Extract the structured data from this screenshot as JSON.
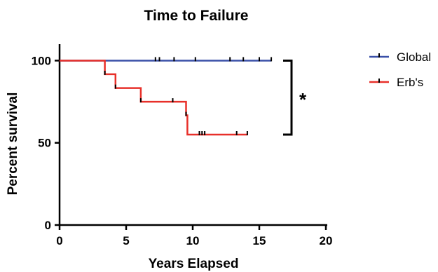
{
  "chart_data": {
    "type": "line",
    "title": "Time to Failure",
    "xlabel": "Years Elapsed",
    "ylabel": "Percent survival",
    "xlim": [
      0,
      20
    ],
    "ylim": [
      0,
      110
    ],
    "x_ticks": [
      0,
      5,
      10,
      15,
      20
    ],
    "y_ticks": [
      0,
      50,
      100
    ],
    "grid": false,
    "legend_position": "right",
    "significance_marker": "*",
    "significance_bracket": {
      "y_from": 55,
      "y_to": 100
    },
    "series": [
      {
        "name": "Global",
        "color": "#3a50a8",
        "steps": [
          [
            0,
            100
          ],
          [
            15.9,
            100
          ]
        ],
        "censored": [
          [
            7.2,
            100
          ],
          [
            7.5,
            100
          ],
          [
            8.6,
            100
          ],
          [
            10.2,
            100
          ],
          [
            12.8,
            100
          ],
          [
            13.8,
            100
          ],
          [
            15.0,
            100
          ],
          [
            15.9,
            100
          ]
        ]
      },
      {
        "name": "Erb's",
        "color": "#e8302a",
        "steps": [
          [
            0,
            100
          ],
          [
            3.4,
            100
          ],
          [
            3.4,
            91.7
          ],
          [
            4.2,
            91.7
          ],
          [
            4.2,
            83.3
          ],
          [
            6.1,
            83.3
          ],
          [
            6.1,
            75
          ],
          [
            9.5,
            75
          ],
          [
            9.5,
            66.7
          ],
          [
            9.6,
            66.7
          ],
          [
            9.6,
            55
          ],
          [
            14.1,
            55
          ]
        ],
        "censored": [
          [
            3.4,
            91.7
          ],
          [
            4.2,
            83.3
          ],
          [
            6.1,
            75
          ],
          [
            8.5,
            75
          ],
          [
            9.5,
            66.7
          ],
          [
            10.5,
            55
          ],
          [
            10.7,
            55
          ],
          [
            10.9,
            55
          ],
          [
            13.3,
            55
          ],
          [
            14.1,
            55
          ]
        ]
      }
    ]
  }
}
